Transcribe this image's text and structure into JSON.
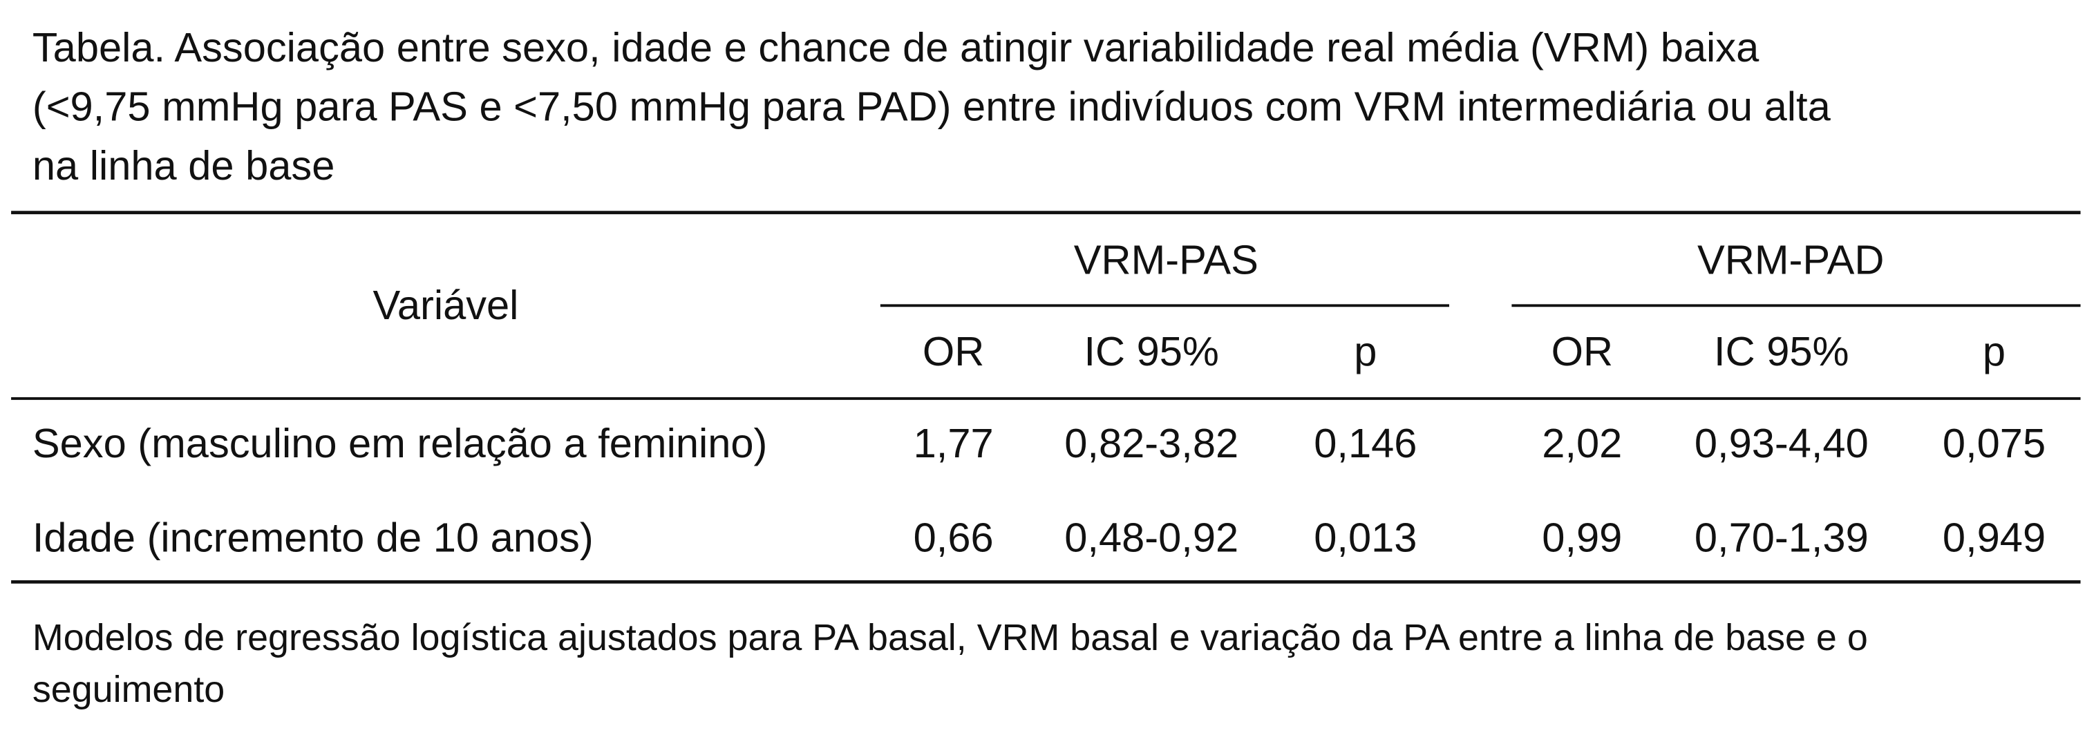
{
  "header": {
    "title": [
      "Tabela. Associação entre sexo, idade e chance de atingir variabilidade real média (VRM) baixa",
      "(<9,75 mmHg para PAS e <7,50 mmHg para PAD) entre indivíduos com VRM intermediária ou alta",
      "na linha de base"
    ]
  },
  "table": {
    "variable_label": "Variável",
    "groups": [
      {
        "label": "VRM-PAS",
        "columns": [
          "OR",
          "IC 95%",
          "p"
        ]
      },
      {
        "label": "VRM-PAD",
        "columns": [
          "OR",
          "IC 95%",
          "p"
        ]
      }
    ],
    "rows": [
      [
        "Sexo (masculino em relação a feminino)",
        "1,77",
        "0,82-3,82",
        "0,146",
        "2,02",
        "0,93-4,40",
        "0,075"
      ],
      [
        "Idade (incremento de 10 anos)",
        "0,66",
        "0,48-0,92",
        "0,013",
        "0,99",
        "0,70-1,39",
        "0,949"
      ]
    ]
  },
  "footnote": [
    "Modelos de regressão logística ajustados para PA basal, VRM basal e variação da PA entre a linha de base e o",
    "seguimento"
  ]
}
